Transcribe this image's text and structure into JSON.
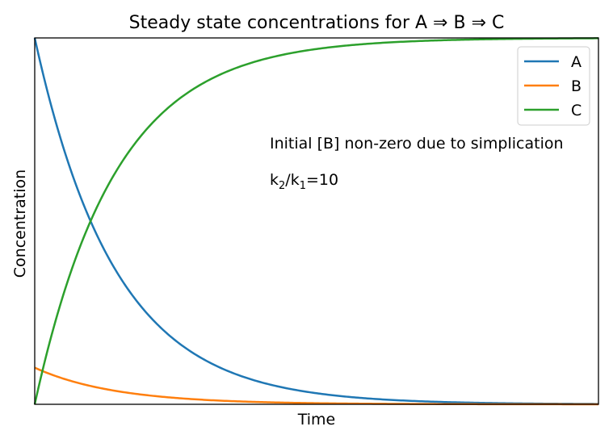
{
  "chart_data": {
    "type": "line",
    "title": "Steady state concentrations for A ⇒ B ⇒ C",
    "xlabel": "Time",
    "ylabel": "Concentration",
    "xlim": [
      0,
      7
    ],
    "ylim": [
      0,
      1
    ],
    "xticks": [],
    "yticks": [],
    "grid": false,
    "legend_position": "top-right",
    "params": {
      "k1": 1,
      "k2": 10
    },
    "series": [
      {
        "name": "A",
        "color": "#1f77b4",
        "formula": "exp(-k1*t)"
      },
      {
        "name": "B",
        "color": "#ff7f0e",
        "formula": "(k1/k2)*exp(-k1*t)"
      },
      {
        "name": "C",
        "color": "#2ca02c",
        "formula": "1-exp(-k1*t)"
      }
    ],
    "annotations": [
      {
        "text": "Initial [B] non-zero due to simplication"
      },
      {
        "base1": "k",
        "sub1": "2",
        "sep": "/",
        "base2": "k",
        "sub2": "1",
        "tail": "=10"
      }
    ]
  }
}
